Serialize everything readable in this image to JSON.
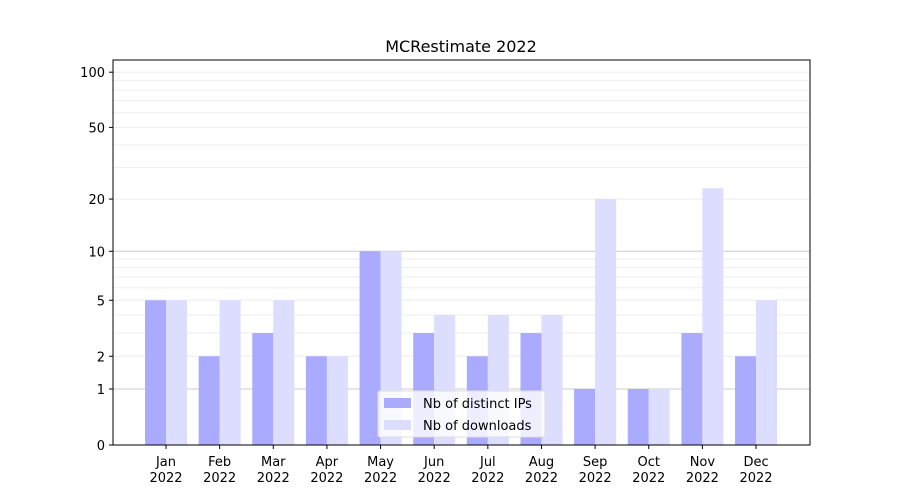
{
  "chart_data": {
    "type": "bar",
    "title": "MCRestimate 2022",
    "xlabel": "",
    "ylabel": "",
    "yscale": "symlog",
    "ylim": [
      0,
      116
    ],
    "yticks": [
      0,
      1,
      2,
      5,
      10,
      20,
      50,
      100
    ],
    "categories": [
      "Jan\n2022",
      "Feb\n2022",
      "Mar\n2022",
      "Apr\n2022",
      "May\n2022",
      "Jun\n2022",
      "Jul\n2022",
      "Aug\n2022",
      "Sep\n2022",
      "Oct\n2022",
      "Nov\n2022",
      "Dec\n2022"
    ],
    "series": [
      {
        "name": "Nb of distinct IPs",
        "color": "#aaaaff",
        "values": [
          5,
          2,
          3,
          2,
          10,
          3,
          2,
          3,
          1,
          1,
          3,
          2
        ]
      },
      {
        "name": "Nb of downloads",
        "color": "#ddddff",
        "values": [
          5,
          5,
          5,
          2,
          10,
          4,
          4,
          4,
          20,
          1,
          23,
          5
        ]
      }
    ],
    "legend": "bottom-center",
    "grid": true
  }
}
